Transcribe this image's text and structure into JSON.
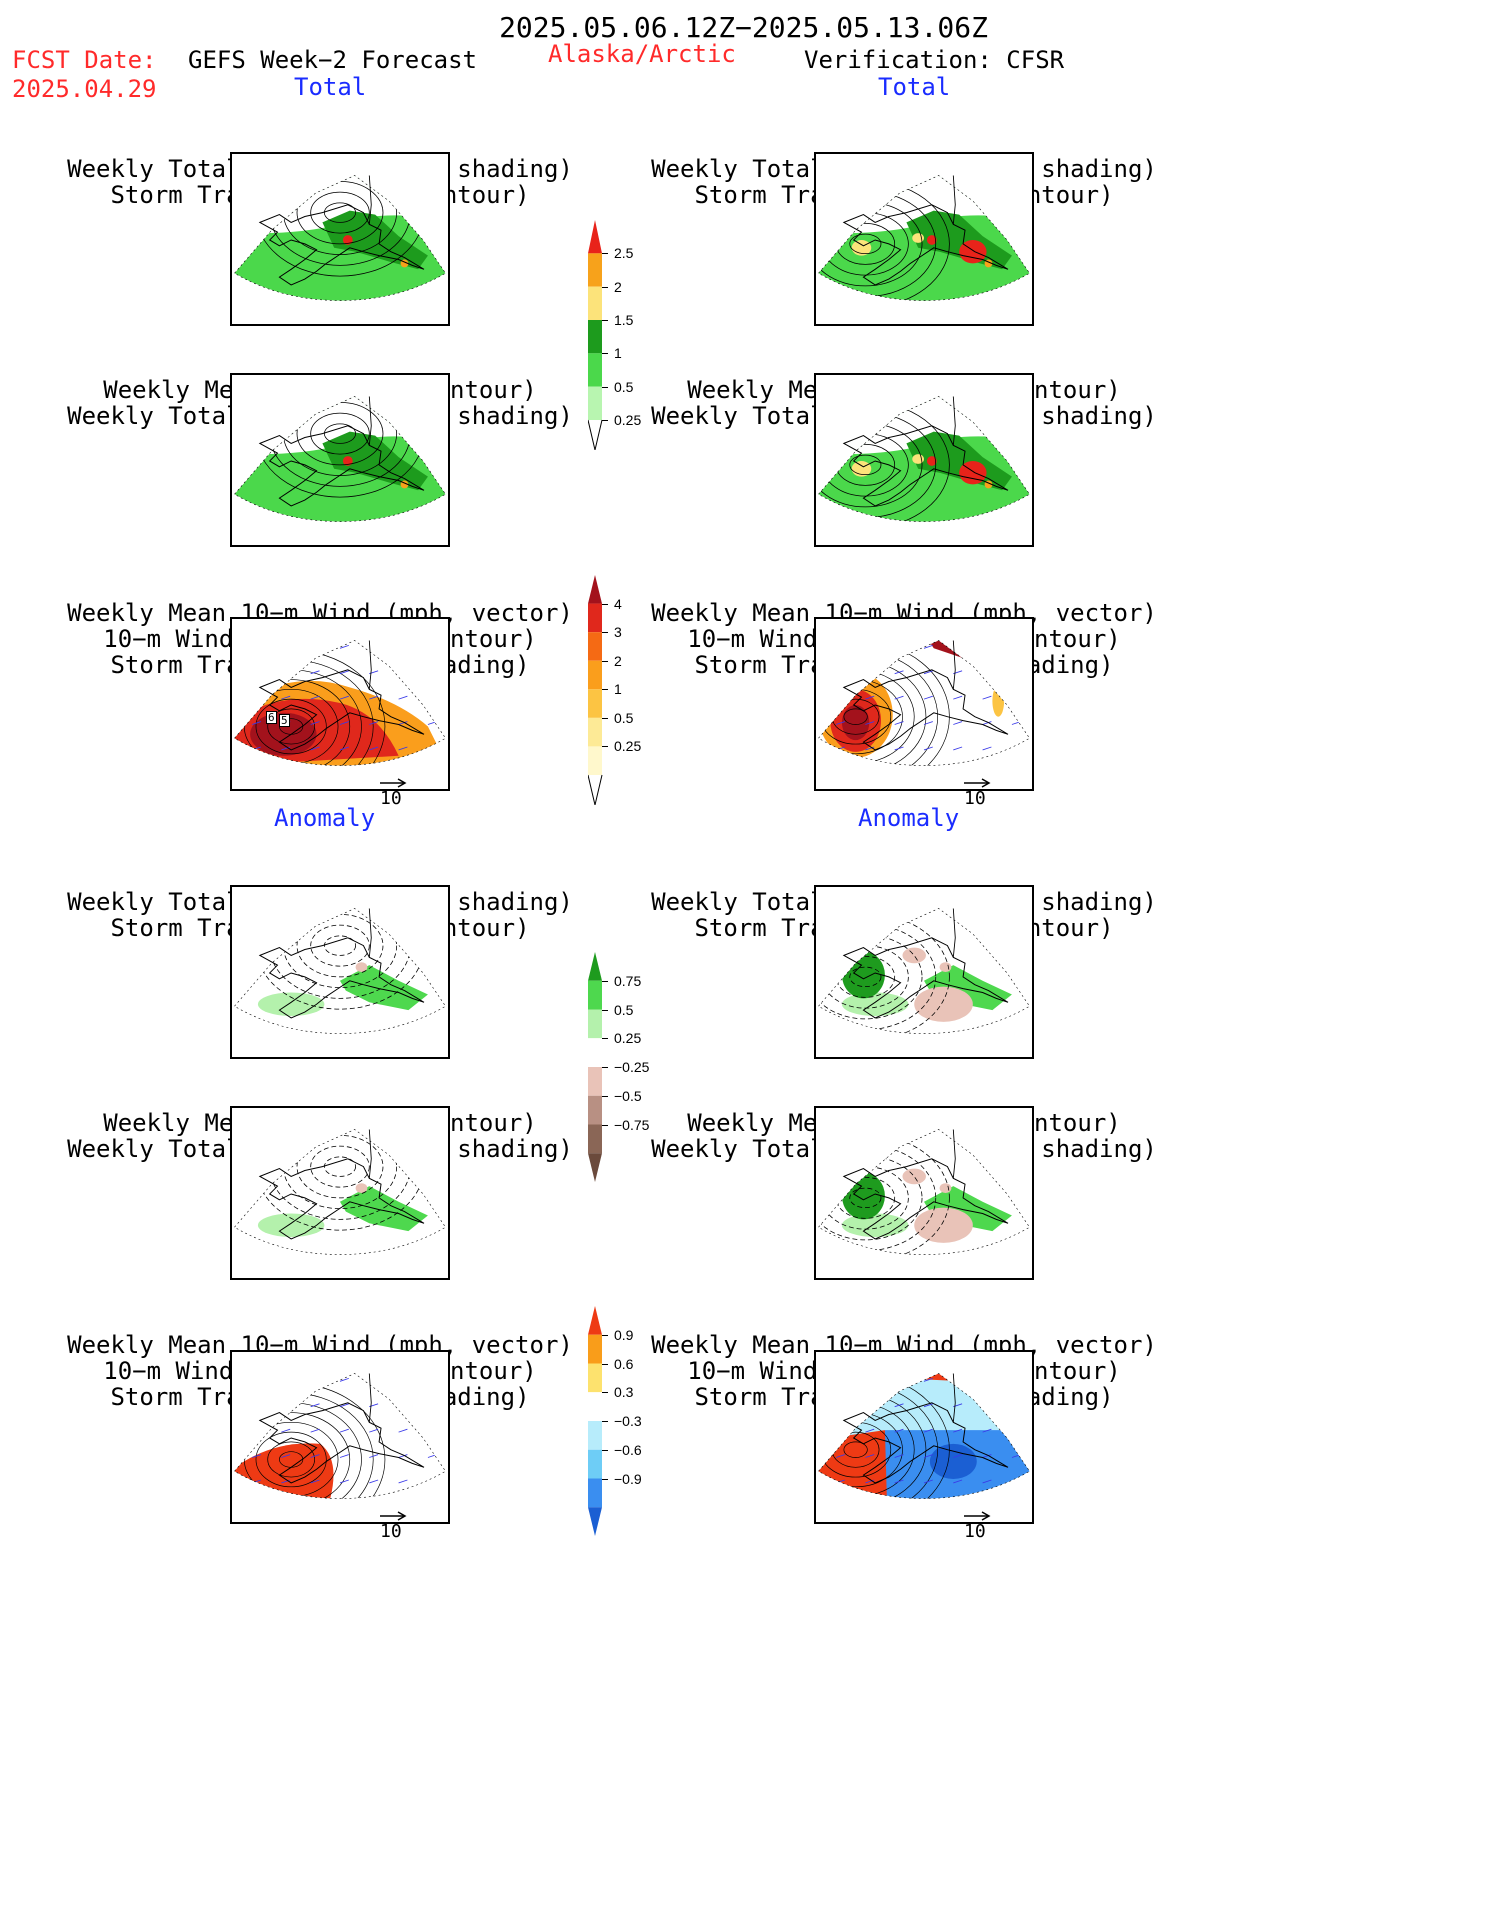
{
  "header": {
    "period": "2025.05.06.12Z−2025.05.13.06Z",
    "fcst_label": "FCST Date:",
    "fcst_date": "2025.04.29",
    "forecast_title": "GEFS Week−2 Forecast",
    "region": "Alaska/Arctic",
    "verification": "Verification: CFSR"
  },
  "sections": {
    "total": "Total",
    "anomaly": "Anomaly"
  },
  "panels": {
    "precip_track": {
      "line1": "Weekly Total Precip (inch, shading)",
      "line2": "Storm Track Density (contour)"
    },
    "slp_precip": {
      "line1": "Weekly Mean SLP (hPa, contour)",
      "line2": "Weekly Total Precip (inch, shading)"
    },
    "wind_track": {
      "line1": "Weekly Mean 10−m Wind (mph, vector)",
      "line2": "10−m Wind Speed (mph, contour)",
      "line3": "Storm Track Density (shading)"
    }
  },
  "wind_panel_labels": [
    "6",
    "5"
  ],
  "vector_scale": "10",
  "colorbars": {
    "precip_total": {
      "labels": [
        "2.5",
        "2",
        "1.5",
        "1",
        "0.5",
        "0.25"
      ],
      "colors": [
        "#e8231a",
        "#f7a21b",
        "#fce37a",
        "#1d9b1d",
        "#4bd84b",
        "#b8f5b0"
      ]
    },
    "track_total": {
      "labels": [
        "4",
        "3",
        "2",
        "1",
        "0.5",
        "0.25"
      ],
      "colors": [
        "#a3121c",
        "#e0281c",
        "#f56a14",
        "#fa9e1c",
        "#fcc443",
        "#fdea96",
        "#fff8cc"
      ]
    },
    "precip_anom": {
      "labels": [
        "0.75",
        "0.5",
        "0.25",
        "−0.25",
        "−0.5",
        "−0.75"
      ],
      "colors": [
        "#1e9b1e",
        "#4ed84e",
        "#b4f1ac",
        "#ffffff",
        "#e9c3b8",
        "#b89083",
        "#8a6656",
        "#6b4a3c"
      ]
    },
    "track_anom": {
      "labels": [
        "0.9",
        "0.6",
        "0.3",
        "−0.3",
        "−0.6",
        "−0.9"
      ],
      "colors": [
        "#ee3a14",
        "#f99d1a",
        "#fde26e",
        "#ffffff",
        "#b7ecfb",
        "#6ecdf6",
        "#3a8ef0",
        "#1b5fd3"
      ]
    }
  },
  "colors": {
    "header_red": "#ff2a2a",
    "section_blue": "#1a2cff"
  }
}
